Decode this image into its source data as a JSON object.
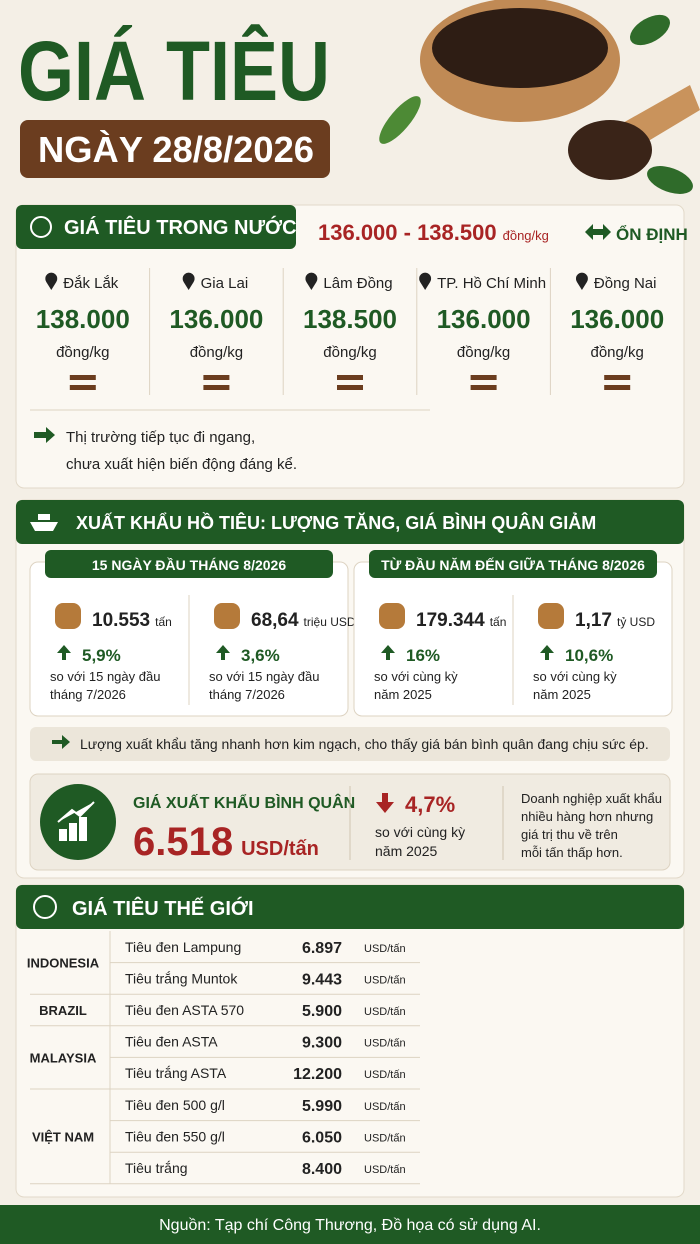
{
  "header": {
    "title": "GIÁ TIÊU",
    "date": "NGÀY 28/8/2026"
  },
  "domestic": {
    "heading": "GIÁ TIÊU TRONG NƯỚC",
    "range": "136.000 - 138.500",
    "range_unit": "đồng/kg",
    "trend": "ỔN ĐỊNH",
    "regions": [
      {
        "name": "Đắk Lắk",
        "price": "138.000",
        "unit": "đồng/kg"
      },
      {
        "name": "Gia Lai",
        "price": "136.000",
        "unit": "đồng/kg"
      },
      {
        "name": "Lâm Đồng",
        "price": "138.500",
        "unit": "đồng/kg"
      },
      {
        "name": "TP. Hồ Chí Minh",
        "price": "136.000",
        "unit": "đồng/kg"
      },
      {
        "name": "Đồng Nai",
        "price": "136.000",
        "unit": "đồng/kg"
      }
    ],
    "note": [
      "Thị trường tiếp tục đi ngang,",
      "chưa xuất hiện biến động đáng kể."
    ]
  },
  "export": {
    "heading": "XUẤT KHẨU HỒ TIÊU: LƯỢNG TĂNG, GIÁ BÌNH QUÂN GIẢM",
    "periods": [
      {
        "title": "15 NGÀY ĐẦU THÁNG 8/2026",
        "items": [
          {
            "value": "10.553",
            "unit": "tấn",
            "change": "5,9%",
            "compare": [
              "so với 15 ngày đầu",
              "tháng 7/2026"
            ]
          },
          {
            "value": "68,64",
            "unit": "triệu USD",
            "change": "3,6%",
            "compare": [
              "so với 15 ngày đầu",
              "tháng 7/2026"
            ]
          }
        ]
      },
      {
        "title": "TỪ ĐẦU NĂM ĐẾN GIỮA THÁNG 8/2026",
        "items": [
          {
            "value": "179.344",
            "unit": "tấn",
            "change": "16%",
            "compare": [
              "so với cùng kỳ",
              "năm 2025"
            ]
          },
          {
            "value": "1,17",
            "unit": "tỷ USD",
            "change": "10,6%",
            "compare": [
              "so với cùng kỳ",
              "năm 2025"
            ]
          }
        ]
      }
    ],
    "note": "Lượng xuất khẩu tăng nhanh hơn kim ngạch, cho thấy giá bán bình quân đang chịu sức ép.",
    "average": {
      "label": "GIÁ XUẤT KHẨU BÌNH QUÂN",
      "value": "6.518",
      "unit": "USD/tấn",
      "change": "4,7%",
      "compare": [
        "so với cùng kỳ",
        "năm 2025"
      ],
      "comment": [
        "Doanh nghiệp xuất khẩu",
        "nhiều hàng hơn nhưng",
        "giá trị thu về trên",
        "mỗi tấn thấp hơn."
      ]
    }
  },
  "world": {
    "heading": "GIÁ TIÊU THẾ GIỚI",
    "countries": [
      {
        "name": "INDONESIA",
        "rows": [
          {
            "product": "Tiêu đen Lampung",
            "price": "6.897",
            "unit": "USD/tấn"
          },
          {
            "product": "Tiêu trắng Muntok",
            "price": "9.443",
            "unit": "USD/tấn"
          }
        ]
      },
      {
        "name": "BRAZIL",
        "rows": [
          {
            "product": "Tiêu đen ASTA 570",
            "price": "5.900",
            "unit": "USD/tấn"
          }
        ]
      },
      {
        "name": "MALAYSIA",
        "rows": [
          {
            "product": "Tiêu đen ASTA",
            "price": "9.300",
            "unit": "USD/tấn"
          },
          {
            "product": "Tiêu trắng ASTA",
            "price": "12.200",
            "unit": "USD/tấn"
          }
        ]
      },
      {
        "name": "VIỆT NAM",
        "rows": [
          {
            "product": "Tiêu đen 500 g/l",
            "price": "5.990",
            "unit": "USD/tấn"
          },
          {
            "product": "Tiêu đen 550 g/l",
            "price": "6.050",
            "unit": "USD/tấn"
          },
          {
            "product": "Tiêu trắng",
            "price": "8.400",
            "unit": "USD/tấn"
          }
        ]
      }
    ]
  },
  "footer": {
    "source": "Nguồn: Tạp chí Công Thương, Đồ họa có sử dụng AI."
  }
}
